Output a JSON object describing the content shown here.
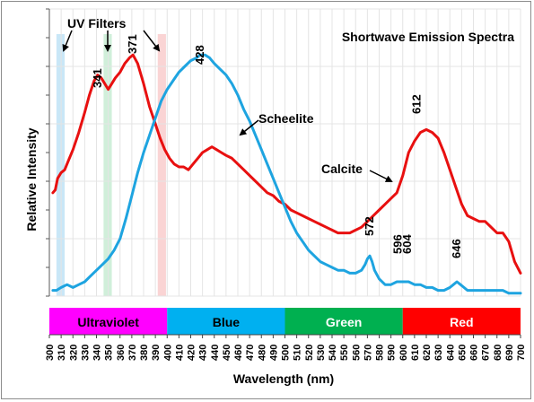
{
  "chart_data": {
    "type": "line",
    "title": "Shortwave Emission Spectra",
    "xlabel": "Wavelength (nm)",
    "ylabel": "Relative Intensity",
    "xlim": [
      300,
      700
    ],
    "ylim": [
      0,
      1
    ],
    "x_ticks": [
      "300",
      "310",
      "320",
      "330",
      "340",
      "350",
      "360",
      "370",
      "380",
      "390",
      "400",
      "410",
      "420",
      "430",
      "440",
      "450",
      "460",
      "470",
      "480",
      "490",
      "500",
      "510",
      "520",
      "530",
      "540",
      "550",
      "560",
      "570",
      "580",
      "590",
      "600",
      "610",
      "620",
      "630",
      "640",
      "650",
      "660",
      "670",
      "680",
      "690",
      "700"
    ],
    "grid": true,
    "colors": {
      "calcite": "#e81010",
      "scheelite": "#1ea4e0"
    },
    "series": [
      {
        "name": "Calcite",
        "color": "#e81010",
        "x": [
          303,
          305,
          307,
          310,
          313,
          316,
          320,
          325,
          330,
          334,
          338,
          341,
          344,
          347,
          350,
          353,
          356,
          360,
          364,
          368,
          371,
          375,
          380,
          385,
          390,
          394,
          398,
          402,
          406,
          410,
          414,
          418,
          422,
          426,
          430,
          434,
          438,
          442,
          446,
          450,
          455,
          460,
          465,
          470,
          475,
          480,
          485,
          490,
          495,
          500,
          505,
          510,
          515,
          520,
          525,
          530,
          535,
          540,
          545,
          550,
          555,
          560,
          565,
          570,
          575,
          580,
          585,
          590,
          595,
          600,
          605,
          610,
          615,
          620,
          625,
          630,
          635,
          640,
          645,
          650,
          655,
          660,
          665,
          670,
          675,
          680,
          685,
          690,
          695,
          700
        ],
        "y": [
          0.36,
          0.37,
          0.41,
          0.43,
          0.44,
          0.47,
          0.51,
          0.57,
          0.64,
          0.7,
          0.75,
          0.77,
          0.76,
          0.74,
          0.72,
          0.74,
          0.76,
          0.78,
          0.81,
          0.83,
          0.84,
          0.81,
          0.74,
          0.66,
          0.6,
          0.55,
          0.51,
          0.48,
          0.46,
          0.45,
          0.45,
          0.44,
          0.46,
          0.48,
          0.5,
          0.51,
          0.52,
          0.51,
          0.5,
          0.49,
          0.48,
          0.46,
          0.44,
          0.42,
          0.4,
          0.38,
          0.36,
          0.35,
          0.33,
          0.32,
          0.3,
          0.29,
          0.28,
          0.27,
          0.26,
          0.25,
          0.24,
          0.23,
          0.22,
          0.22,
          0.22,
          0.23,
          0.24,
          0.26,
          0.28,
          0.3,
          0.32,
          0.34,
          0.36,
          0.42,
          0.5,
          0.54,
          0.57,
          0.58,
          0.57,
          0.55,
          0.5,
          0.44,
          0.38,
          0.32,
          0.28,
          0.27,
          0.26,
          0.26,
          0.24,
          0.22,
          0.22,
          0.19,
          0.12,
          0.08
        ]
      },
      {
        "name": "Scheelite",
        "color": "#1ea4e0",
        "x": [
          303,
          306,
          310,
          315,
          320,
          325,
          330,
          335,
          340,
          345,
          350,
          355,
          360,
          365,
          370,
          375,
          380,
          385,
          390,
          395,
          400,
          405,
          410,
          415,
          420,
          425,
          428,
          432,
          436,
          440,
          445,
          450,
          455,
          460,
          465,
          470,
          475,
          480,
          485,
          490,
          495,
          500,
          505,
          510,
          515,
          520,
          525,
          530,
          535,
          540,
          545,
          550,
          555,
          560,
          565,
          568,
          570,
          572,
          574,
          576,
          580,
          585,
          590,
          595,
          600,
          605,
          610,
          615,
          620,
          625,
          630,
          635,
          640,
          643,
          646,
          649,
          652,
          655,
          660,
          665,
          670,
          675,
          680,
          685,
          690,
          695,
          700
        ],
        "y": [
          0.02,
          0.02,
          0.03,
          0.04,
          0.03,
          0.04,
          0.05,
          0.07,
          0.09,
          0.11,
          0.13,
          0.16,
          0.2,
          0.27,
          0.35,
          0.43,
          0.5,
          0.56,
          0.62,
          0.68,
          0.72,
          0.75,
          0.78,
          0.8,
          0.82,
          0.83,
          0.84,
          0.84,
          0.83,
          0.81,
          0.79,
          0.77,
          0.74,
          0.7,
          0.65,
          0.61,
          0.56,
          0.51,
          0.46,
          0.41,
          0.36,
          0.31,
          0.26,
          0.22,
          0.19,
          0.16,
          0.14,
          0.12,
          0.11,
          0.1,
          0.09,
          0.09,
          0.08,
          0.08,
          0.09,
          0.11,
          0.13,
          0.14,
          0.12,
          0.09,
          0.06,
          0.04,
          0.04,
          0.05,
          0.05,
          0.05,
          0.04,
          0.04,
          0.03,
          0.03,
          0.02,
          0.02,
          0.03,
          0.04,
          0.05,
          0.04,
          0.03,
          0.02,
          0.02,
          0.02,
          0.02,
          0.02,
          0.02,
          0.02,
          0.01,
          0.01,
          0.01
        ]
      }
    ],
    "peak_labels": [
      {
        "wavelength": 341,
        "text": "341"
      },
      {
        "wavelength": 371,
        "text": "371"
      },
      {
        "wavelength": 428,
        "text": "428"
      },
      {
        "wavelength": 572,
        "text": "572"
      },
      {
        "wavelength": 596,
        "text": "596"
      },
      {
        "wavelength": 604,
        "text": "604"
      },
      {
        "wavelength": 612,
        "text": "612"
      },
      {
        "wavelength": 646,
        "text": "646"
      }
    ],
    "uv_filters": {
      "label": "UV Filters",
      "bands": [
        {
          "from": 306,
          "to": 313,
          "color": "#bfe3f6"
        },
        {
          "from": 346,
          "to": 353,
          "color": "#c8ecd4"
        },
        {
          "from": 392,
          "to": 399,
          "color": "#f9cccc"
        }
      ]
    },
    "color_bands": [
      {
        "from": 300,
        "to": 400,
        "label": "Ultraviolet",
        "color": "#ff00ff",
        "text_color": "#000000"
      },
      {
        "from": 400,
        "to": 500,
        "label": "Blue",
        "color": "#00b0f0",
        "text_color": "#000000"
      },
      {
        "from": 500,
        "to": 600,
        "label": "Green",
        "color": "#00b050",
        "text_color": "#ffffff"
      },
      {
        "from": 600,
        "to": 700,
        "label": "Red",
        "color": "#ff0000",
        "text_color": "#ffffff"
      }
    ],
    "legend": "inline-annotations"
  }
}
